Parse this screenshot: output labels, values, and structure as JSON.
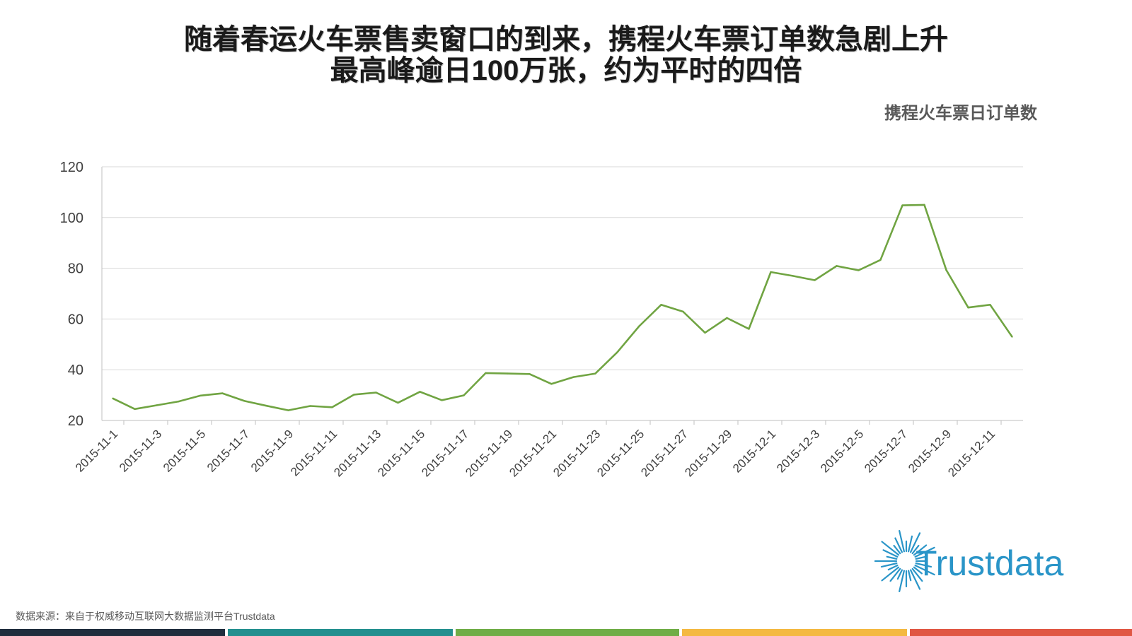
{
  "title": {
    "line1": "随着春运火车票售卖窗口的到来，携程火车票订单数急剧上升",
    "line2": "最高峰逾日100万张，约为平时的四倍"
  },
  "legend_label": "携程火车票日订单数",
  "source": "数据来源：来自于权威移动互联网大数据监测平台Trustdata",
  "logo_text": "Trustdata",
  "colors": {
    "line": "#70a442",
    "grid": "#d9d9d9",
    "axis": "#bfbfbf",
    "bottom_bars": [
      "#1f2d3d",
      "#24908f",
      "#70ad47",
      "#f4b942",
      "#e05744"
    ],
    "logo": "#2a95c8"
  },
  "chart_data": {
    "type": "line",
    "title": "",
    "xlabel": "",
    "ylabel": "",
    "ylim": [
      20,
      120
    ],
    "yticks": [
      20,
      40,
      60,
      80,
      100,
      120
    ],
    "grid": true,
    "x": [
      "2015-11-1",
      "2015-11-2",
      "2015-11-3",
      "2015-11-4",
      "2015-11-5",
      "2015-11-6",
      "2015-11-7",
      "2015-11-8",
      "2015-11-9",
      "2015-11-10",
      "2015-11-11",
      "2015-11-12",
      "2015-11-13",
      "2015-11-14",
      "2015-11-15",
      "2015-11-16",
      "2015-11-17",
      "2015-11-18",
      "2015-11-19",
      "2015-11-20",
      "2015-11-21",
      "2015-11-22",
      "2015-11-23",
      "2015-11-24",
      "2015-11-25",
      "2015-11-26",
      "2015-11-27",
      "2015-11-28",
      "2015-11-29",
      "2015-11-30",
      "2015-12-1",
      "2015-12-2",
      "2015-12-3",
      "2015-12-4",
      "2015-12-5",
      "2015-12-6",
      "2015-12-7",
      "2015-12-8",
      "2015-12-9",
      "2015-12-10",
      "2015-12-11",
      "2015-12-12"
    ],
    "x_tick_labels": [
      "2015-11-1",
      "2015-11-3",
      "2015-11-5",
      "2015-11-7",
      "2015-11-9",
      "2015-11-11",
      "2015-11-13",
      "2015-11-15",
      "2015-11-17",
      "2015-11-19",
      "2015-11-21",
      "2015-11-23",
      "2015-11-25",
      "2015-11-27",
      "2015-11-29",
      "2015-12-1",
      "2015-12-3",
      "2015-12-5",
      "2015-12-7",
      "2015-12-9",
      "2015-12-11"
    ],
    "series": [
      {
        "name": "携程火车票日订单数",
        "values": [
          28.7,
          24.5,
          26.0,
          27.5,
          29.8,
          30.7,
          27.7,
          25.8,
          24.0,
          25.7,
          25.2,
          30.2,
          31.0,
          27.0,
          31.3,
          28.0,
          29.9,
          38.7,
          38.5,
          38.3,
          34.4,
          37.1,
          38.5,
          46.9,
          57.2,
          65.6,
          62.9,
          54.6,
          60.4,
          56.1,
          78.5,
          77.0,
          75.3,
          80.9,
          79.2,
          83.3,
          104.8,
          105.0,
          79.3,
          64.5,
          65.6,
          53.0
        ]
      }
    ]
  }
}
